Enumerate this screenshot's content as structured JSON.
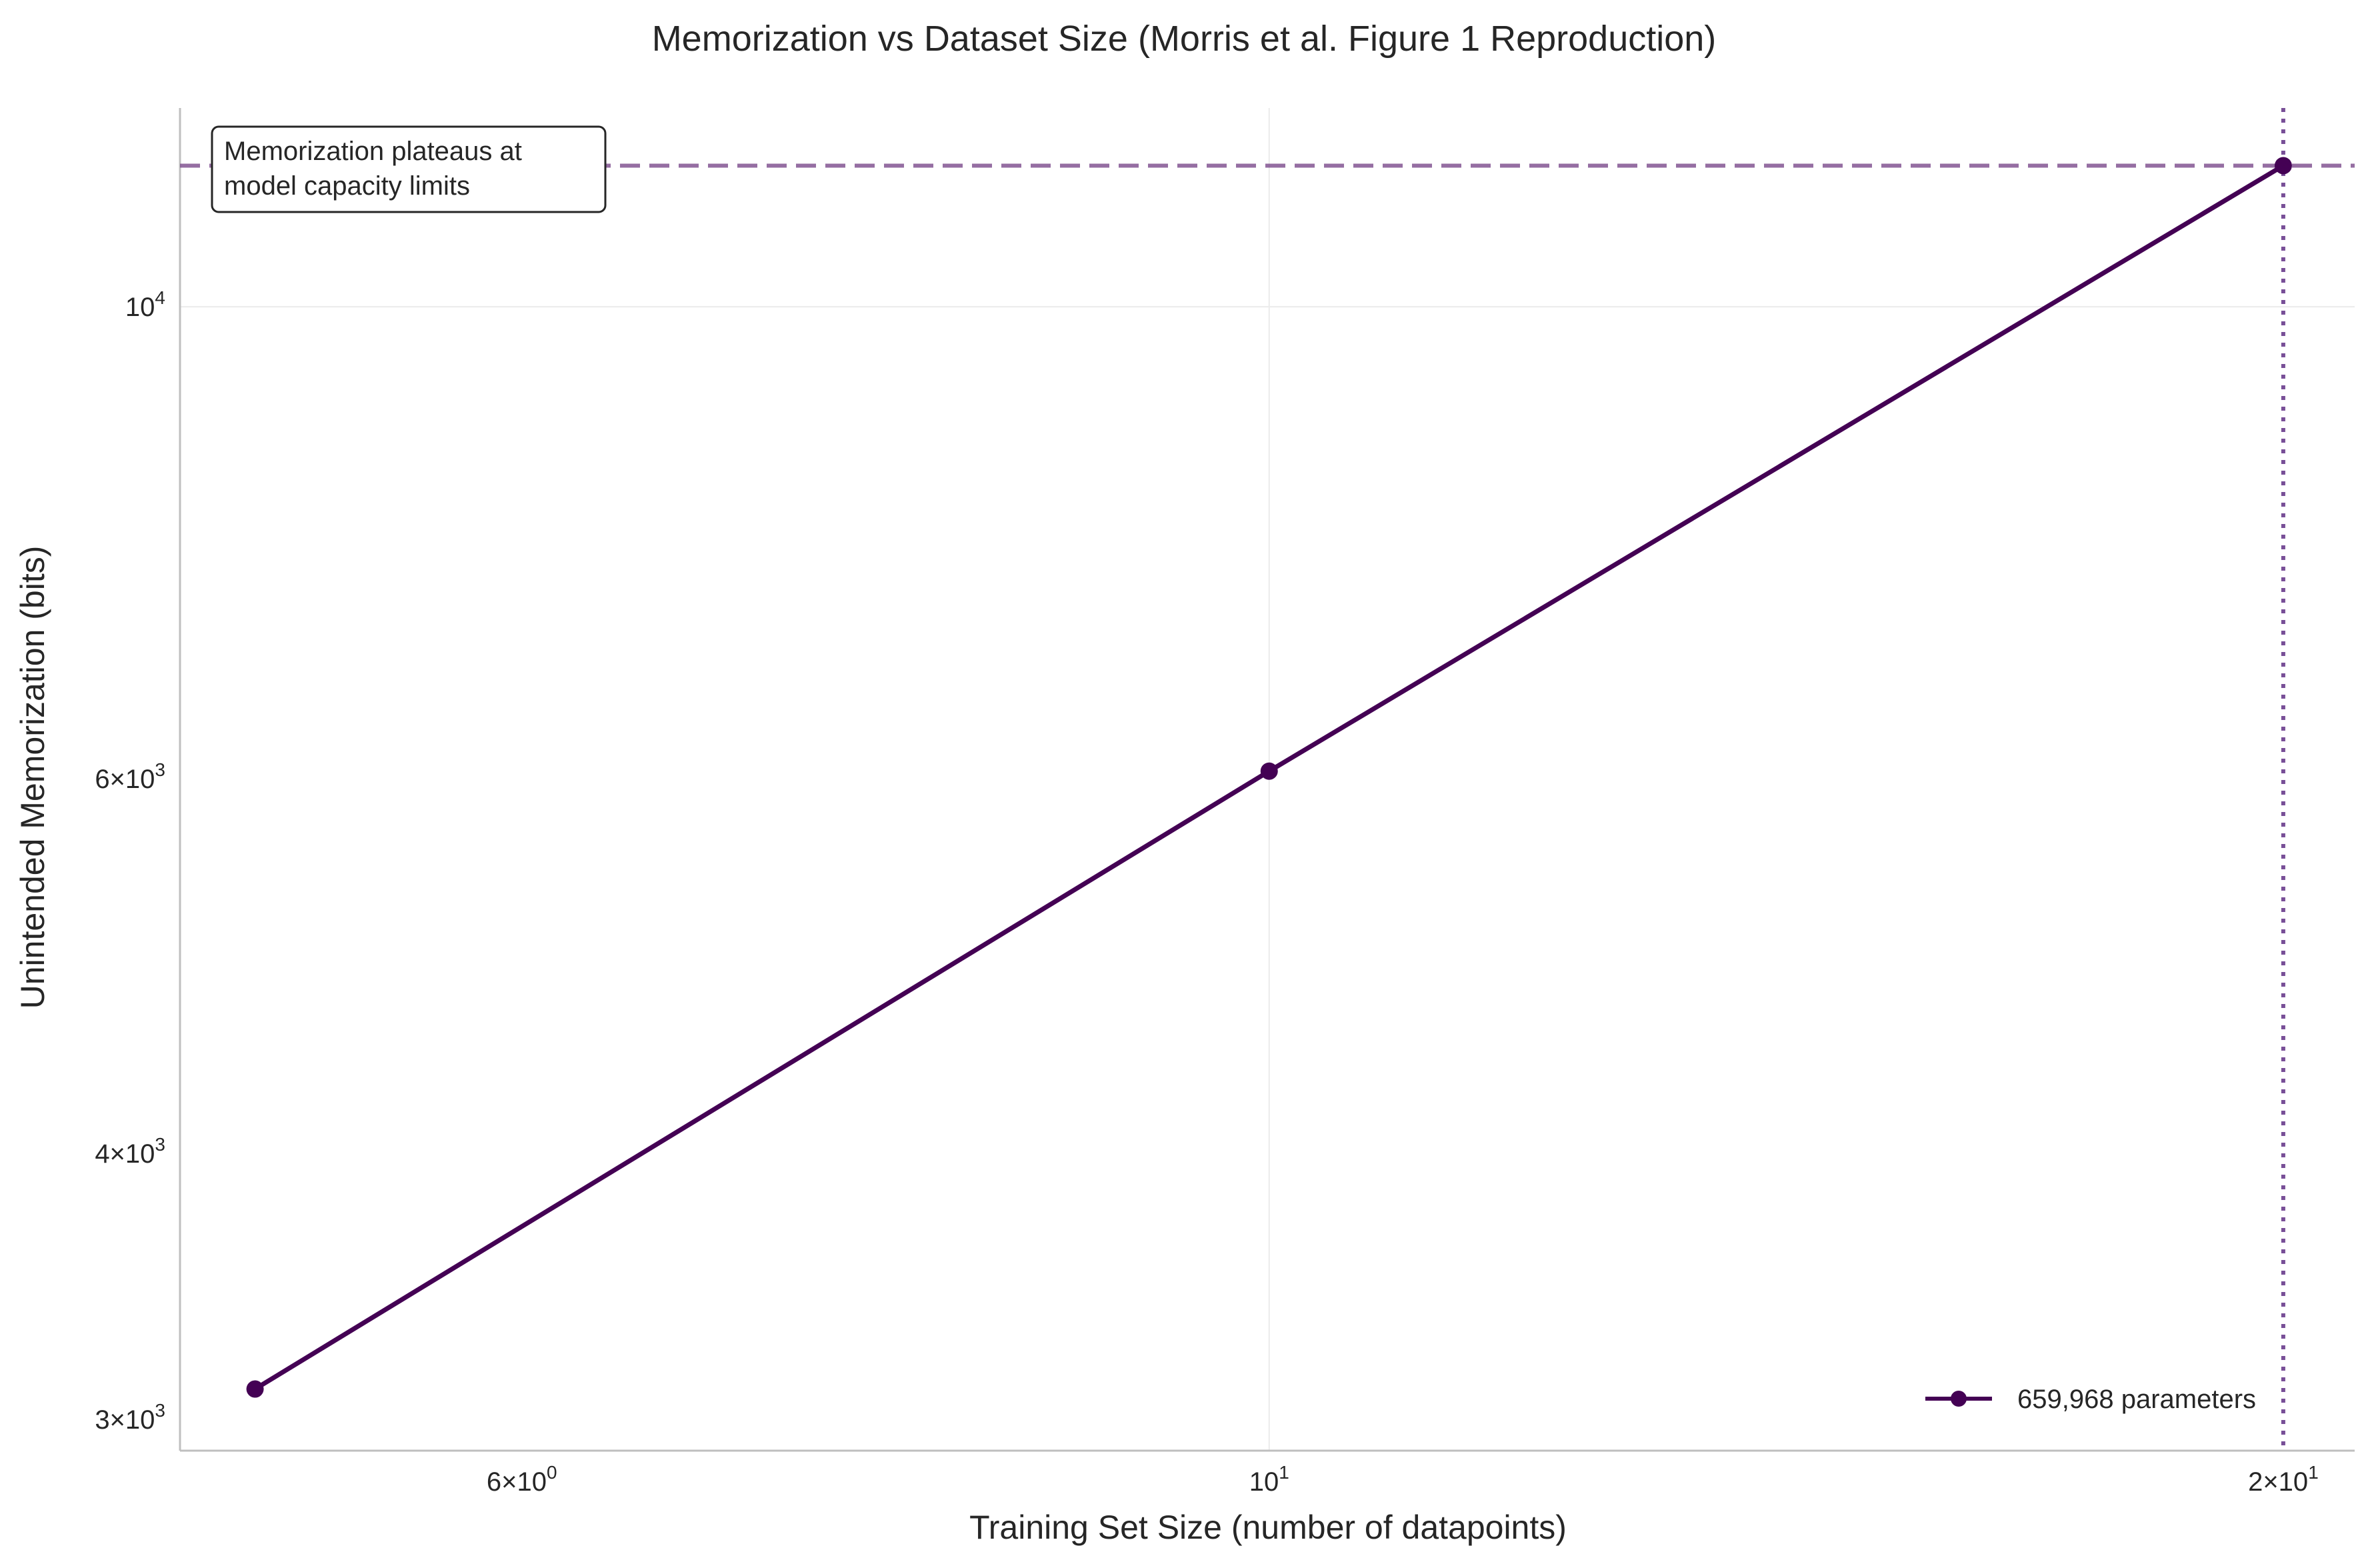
{
  "chart_data": {
    "type": "line",
    "title": "Memorization vs Dataset Size (Morris et al. Figure 1 Reproduction)",
    "xlabel": "Training Set Size (number of datapoints)",
    "ylabel": "Unintended Memorization (bits)",
    "xscale": "log",
    "yscale": "log",
    "xlim": [
      4.75,
      21.0
    ],
    "ylim": [
      2900,
      12400
    ],
    "grid": true,
    "legend_position": "lower-right",
    "x_ticks": [
      {
        "value": 6,
        "mantissa": "6",
        "base": "10",
        "exponent": "0"
      },
      {
        "value": 10,
        "mantissa": "",
        "base": "10",
        "exponent": "1"
      },
      {
        "value": 20,
        "mantissa": "2",
        "base": "10",
        "exponent": "1"
      }
    ],
    "y_ticks": [
      {
        "value": 3000,
        "mantissa": "3",
        "base": "10",
        "exponent": "3"
      },
      {
        "value": 4000,
        "mantissa": "4",
        "base": "10",
        "exponent": "3"
      },
      {
        "value": 6000,
        "mantissa": "6",
        "base": "10",
        "exponent": "3"
      },
      {
        "value": 10000,
        "mantissa": "",
        "base": "10",
        "exponent": "4"
      }
    ],
    "series": [
      {
        "name": "659,968 parameters",
        "color": "#440154",
        "x": [
          5,
          10,
          20
        ],
        "y": [
          3100,
          6050,
          11650
        ]
      }
    ],
    "reference_lines": {
      "horizontal_capacity": {
        "y": 11650,
        "color": "#7b4a8c",
        "style": "dashed"
      },
      "vertical_dataset": {
        "x": 20,
        "color": "#6a3d8c",
        "style": "dotted"
      }
    },
    "annotation": {
      "lines": [
        "Memorization plateaus at",
        "model capacity limits"
      ],
      "position": "top-left"
    }
  }
}
